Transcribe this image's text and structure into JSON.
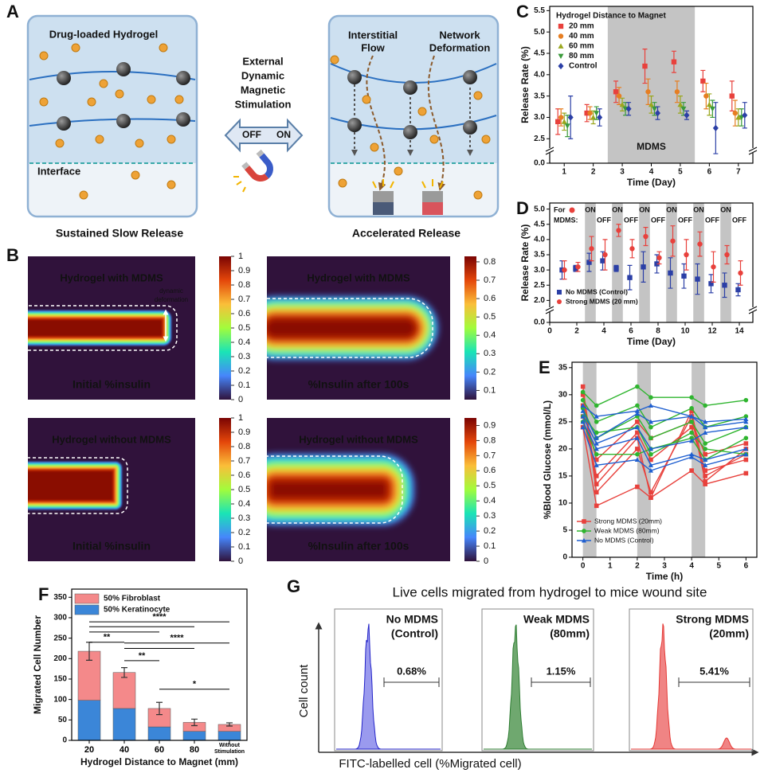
{
  "panel_a": {
    "label": "A",
    "left_title": "Drug-loaded Hydrogel",
    "interface": "Interface",
    "left_caption": "Sustained Slow Release",
    "stimulus": [
      "External",
      "Dynamic",
      "Magnetic",
      "Stimulation"
    ],
    "off": "OFF",
    "on": "ON",
    "flow": [
      "Interstitial",
      "Flow"
    ],
    "deformation": [
      "Network",
      "Deformation"
    ],
    "right_caption": "Accelerated Release"
  },
  "panel_b": {
    "label": "B",
    "maps": [
      {
        "title": "Hydrogel with MDMS",
        "caption": "Initial %insulin",
        "note": [
          "dynamic",
          "deformation"
        ],
        "clim": [
          0,
          1
        ],
        "cticks": [
          0,
          0.1,
          0.2,
          0.3,
          0.4,
          0.5,
          0.6,
          0.7,
          0.8,
          0.9,
          1
        ]
      },
      {
        "title": "Hydrogel with MDMS",
        "caption": "%Insulin after 100s",
        "clim": [
          0.05,
          0.83
        ],
        "cticks": [
          0.1,
          0.2,
          0.3,
          0.4,
          0.5,
          0.6,
          0.7,
          0.8
        ]
      },
      {
        "title": "Hydrogel without MDMS",
        "caption": "Initial %insulin",
        "clim": [
          0,
          1
        ],
        "cticks": [
          0,
          0.1,
          0.2,
          0.3,
          0.4,
          0.5,
          0.6,
          0.7,
          0.8,
          0.9,
          1
        ]
      },
      {
        "title": "Hydrogel without MDMS",
        "caption": "%Insulin after 100s",
        "clim": [
          0,
          0.95
        ],
        "cticks": [
          0,
          0.1,
          0.2,
          0.3,
          0.4,
          0.5,
          0.6,
          0.7,
          0.8,
          0.9
        ]
      }
    ]
  },
  "chart_data": [
    {
      "type": "errorbar",
      "label": "C",
      "xlabel": "Time (Day)",
      "ylabel": "Release Rate (%)",
      "x": [
        1,
        2,
        3,
        4,
        5,
        6,
        7
      ],
      "xlim": [
        0.5,
        7.5
      ],
      "xticks": [
        1,
        2,
        3,
        4,
        5,
        6,
        7
      ],
      "ylim": [
        0,
        5.6
      ],
      "ybreak": [
        0.3,
        2.3
      ],
      "yticks": [
        {
          "value": 0,
          "label": "0.0"
        },
        {
          "value": 2.5,
          "label": "2.5"
        },
        {
          "value": 3,
          "label": "3.0"
        },
        {
          "value": 3.5,
          "label": "3.5"
        },
        {
          "value": 4,
          "label": "4.0"
        },
        {
          "value": 4.5,
          "label": "4.5"
        },
        {
          "value": 5,
          "label": "5.0"
        },
        {
          "value": 5.5,
          "label": "5.5"
        }
      ],
      "shade": [
        {
          "from": 2.5,
          "to": 5.5,
          "label": "MDMS"
        }
      ],
      "legend_title": "Hydrogel Distance to Magnet",
      "legend": "upper left",
      "series": [
        {
          "name": "20 mm",
          "color": "#e8413c",
          "marker": "square",
          "values": [
            2.9,
            3.1,
            3.6,
            4.2,
            4.3,
            3.85,
            3.5
          ],
          "errors": [
            0.3,
            0.2,
            0.25,
            0.4,
            0.25,
            0.25,
            0.35
          ]
        },
        {
          "name": "40 mm",
          "color": "#e67e22",
          "marker": "circle",
          "values": [
            3.0,
            3.1,
            3.5,
            3.6,
            3.6,
            3.5,
            3.1
          ],
          "errors": [
            0.2,
            0.15,
            0.2,
            0.3,
            0.25,
            0.3,
            0.3
          ]
        },
        {
          "name": "60 mm",
          "color": "#9aa71e",
          "marker": "triangle-up",
          "values": [
            2.9,
            3.0,
            3.3,
            3.3,
            3.3,
            3.3,
            3.0
          ],
          "errors": [
            0.2,
            0.15,
            0.15,
            0.2,
            0.2,
            0.25,
            0.2
          ]
        },
        {
          "name": "80 mm",
          "color": "#3a9a3a",
          "marker": "triangle-down",
          "values": [
            2.8,
            3.1,
            3.2,
            3.2,
            3.2,
            3.2,
            3.0
          ],
          "errors": [
            0.25,
            0.15,
            0.15,
            0.15,
            0.15,
            0.2,
            0.2
          ]
        },
        {
          "name": "Control",
          "color": "#2b3fa6",
          "marker": "diamond",
          "values": [
            3.0,
            3.0,
            3.2,
            3.1,
            3.05,
            2.75,
            3.05
          ],
          "errors": [
            0.5,
            0.2,
            0.15,
            0.15,
            0.1,
            0.6,
            0.3
          ]
        }
      ]
    },
    {
      "type": "errorbar",
      "label": "D",
      "xlabel": "Time (Day)",
      "ylabel": "Release Rate (%)",
      "x": [
        1,
        2,
        3,
        4,
        5,
        6,
        7,
        8,
        9,
        10,
        11,
        12,
        13,
        14
      ],
      "xlim": [
        0,
        15
      ],
      "xticks": [
        0,
        2,
        4,
        6,
        8,
        10,
        12,
        14
      ],
      "ylim": [
        0,
        5.2
      ],
      "ybreak": [
        0.3,
        1.8
      ],
      "yticks": [
        {
          "value": 0,
          "label": "0.0"
        },
        {
          "value": 2,
          "label": "2.0"
        },
        {
          "value": 2.5,
          "label": "2.5"
        },
        {
          "value": 3,
          "label": "3.0"
        },
        {
          "value": 3.5,
          "label": "3.5"
        },
        {
          "value": 4,
          "label": "4.0"
        },
        {
          "value": 4.5,
          "label": "4.5"
        },
        {
          "value": 5,
          "label": "5.0"
        }
      ],
      "shade": [
        {
          "from": 2.6,
          "to": 3.4
        },
        {
          "from": 4.6,
          "to": 5.4
        },
        {
          "from": 6.6,
          "to": 7.4
        },
        {
          "from": 8.6,
          "to": 9.4
        },
        {
          "from": 10.6,
          "to": 11.4
        },
        {
          "from": 12.6,
          "to": 13.4
        }
      ],
      "phase_title": [
        "For",
        "MDMS:"
      ],
      "on_labels": [
        "ON",
        "ON",
        "ON",
        "ON",
        "ON",
        "ON"
      ],
      "off_labels": [
        "OFF",
        "OFF",
        "OFF",
        "OFF",
        "OFF",
        "OFF"
      ],
      "legend": "lower left",
      "series": [
        {
          "name": "No MDMS (Control)",
          "color": "#2b3fa6",
          "marker": "square",
          "values": [
            3.0,
            3.05,
            3.25,
            3.3,
            3.05,
            2.75,
            3.1,
            3.2,
            2.9,
            2.8,
            2.7,
            2.55,
            2.5,
            2.35
          ],
          "errors": [
            0.3,
            0.1,
            0.3,
            0.3,
            0.1,
            0.4,
            0.5,
            0.3,
            0.5,
            0.4,
            0.5,
            0.3,
            0.4,
            0.2
          ]
        },
        {
          "name": "Strong MDMS (20 mm)",
          "color": "#e8413c",
          "marker": "circle",
          "values": [
            3.0,
            3.1,
            3.7,
            3.5,
            4.3,
            3.7,
            4.1,
            3.4,
            3.95,
            3.5,
            3.85,
            3.1,
            3.5,
            2.9
          ],
          "errors": [
            0.3,
            0.15,
            0.4,
            0.5,
            0.2,
            0.3,
            0.3,
            0.2,
            0.5,
            0.5,
            0.4,
            0.5,
            0.3,
            0.4
          ]
        }
      ]
    },
    {
      "type": "line",
      "label": "E",
      "xlabel": "Time (h)",
      "ylabel": "%Blood Glucose (mmol/L)",
      "x": [
        0,
        0.5,
        2,
        2.5,
        4,
        4.5,
        6
      ],
      "xlim": [
        -0.4,
        6.4
      ],
      "xticks": [
        0,
        1,
        2,
        3,
        4,
        5,
        6
      ],
      "ylim": [
        0,
        36
      ],
      "yticks": [
        0,
        5,
        10,
        15,
        20,
        25,
        30,
        35
      ],
      "shade": [
        {
          "from": 0,
          "to": 0.5
        },
        {
          "from": 2,
          "to": 2.5
        },
        {
          "from": 4,
          "to": 4.5
        }
      ],
      "legend": "lower left",
      "series": [
        {
          "name": "Strong MDMS (20mm)",
          "color": "#e8413c",
          "marker": "square",
          "lines": [
            [
              31.5,
              13.5,
              22,
              11,
              27,
              15,
              19
            ],
            [
              30,
              12,
              20,
              12,
              26,
              14,
              20
            ],
            [
              24,
              9.5,
              13,
              11,
              16,
              13.5,
              15.5
            ],
            [
              26,
              15,
              23,
              18,
              24,
              16,
              18
            ],
            [
              28,
              18,
              25,
              22,
              25,
              19,
              21
            ]
          ]
        },
        {
          "name": "Weak MDMS (80mm)",
          "color": "#2fb52f",
          "marker": "circle",
          "lines": [
            [
              30.5,
              28,
              31.5,
              29.5,
              29.5,
              28,
              29
            ],
            [
              29,
              25,
              28,
              24,
              27.5,
              24,
              26
            ],
            [
              27.5,
              22,
              26,
              22,
              25,
              21,
              24
            ],
            [
              26,
              23,
              24,
              19,
              23,
              20,
              19
            ],
            [
              25,
              19,
              19,
              20,
              22,
              18,
              22
            ]
          ]
        },
        {
          "name": "No MDMS (Control)",
          "color": "#1f5fd0",
          "marker": "triangle-up",
          "lines": [
            [
              28,
              26,
              27,
              28,
              26,
              25,
              25.5
            ],
            [
              27,
              22,
              26.5,
              25,
              26,
              24,
              25
            ],
            [
              26,
              21,
              24,
              20,
              21.5,
              23,
              24
            ],
            [
              25,
              20,
              22,
              17,
              19,
              18,
              20
            ],
            [
              24,
              17,
              18,
              16,
              18.5,
              17,
              19
            ]
          ]
        }
      ]
    },
    {
      "type": "stacked_bar",
      "label": "F",
      "xlabel": "Hydrogel Distance to Magnet (mm)",
      "ylabel": "Migrated Cell Number",
      "categories": [
        "20",
        "40",
        "60",
        "80",
        "Without Stimulation"
      ],
      "ylim": [
        0,
        370
      ],
      "yticks": [
        0,
        50,
        100,
        150,
        200,
        250,
        300,
        350
      ],
      "legend": "upper left",
      "series": [
        {
          "name": "50% Keratinocyte",
          "color": "#3b86d8",
          "values": [
            98,
            78,
            33,
            22,
            22
          ]
        },
        {
          "name": "50% Fibroblast",
          "color": "#f4898a",
          "values": [
            120,
            88,
            45,
            22,
            17
          ],
          "errors": [
            22,
            12,
            15,
            8,
            4
          ]
        }
      ],
      "significance": [
        {
          "from": 0,
          "to": 4,
          "y": 290,
          "label": "****"
        },
        {
          "from": 0,
          "to": 3,
          "y": 278
        },
        {
          "from": 0,
          "to": 2,
          "y": 265
        },
        {
          "from": 0,
          "to": 1,
          "y": 240,
          "label": "**"
        },
        {
          "from": 1,
          "to": 4,
          "y": 238,
          "label": "****"
        },
        {
          "from": 1,
          "to": 3,
          "y": 225
        },
        {
          "from": 1,
          "to": 2,
          "y": 195,
          "label": "**"
        },
        {
          "from": 2,
          "to": 4,
          "y": 125,
          "label": "*"
        }
      ]
    }
  ],
  "panel_g": {
    "label": "G",
    "title": "Live cells migrated from hydrogel to mice wound site",
    "ylabel": "Cell count",
    "xlabel": "FITC-labelled cell (%Migrated cell)",
    "panels": [
      {
        "name": [
          "No MDMS",
          "(Control)"
        ],
        "color": "#2323c8",
        "fill": "#9a9aee",
        "gate": "0.68%"
      },
      {
        "name": [
          "Weak MDMS",
          "(80mm)"
        ],
        "color": "#2e7d32",
        "fill": "#6fa86f",
        "gate": "1.15%"
      },
      {
        "name": [
          "Strong MDMS",
          "(20mm)"
        ],
        "color": "#e53935",
        "fill": "#f08484",
        "gate": "5.41%"
      }
    ]
  }
}
